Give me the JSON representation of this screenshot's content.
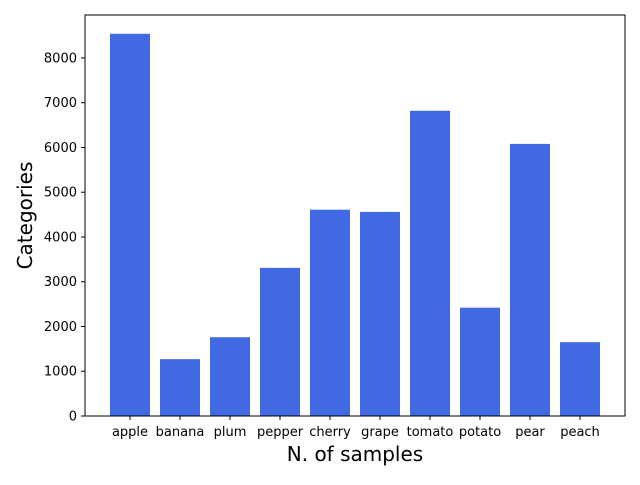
{
  "chart_data": {
    "type": "bar",
    "categories": [
      "apple",
      "banana",
      "plum",
      "pepper",
      "cherry",
      "grape",
      "tomato",
      "potato",
      "pear",
      "peach"
    ],
    "values": [
      8540,
      1270,
      1760,
      3310,
      4610,
      4560,
      6820,
      2420,
      6080,
      1650
    ],
    "xlabel": "N. of samples",
    "ylabel": "Categories",
    "ylim": [
      0,
      8960
    ],
    "yticks": [
      0,
      1000,
      2000,
      3000,
      4000,
      5000,
      6000,
      7000,
      8000
    ],
    "ytick_labels": [
      "0",
      "1000",
      "2000",
      "3000",
      "4000",
      "5000",
      "6000",
      "7000",
      "8000"
    ],
    "bar_color": "#4169E1",
    "grid": false,
    "legend": "none"
  }
}
